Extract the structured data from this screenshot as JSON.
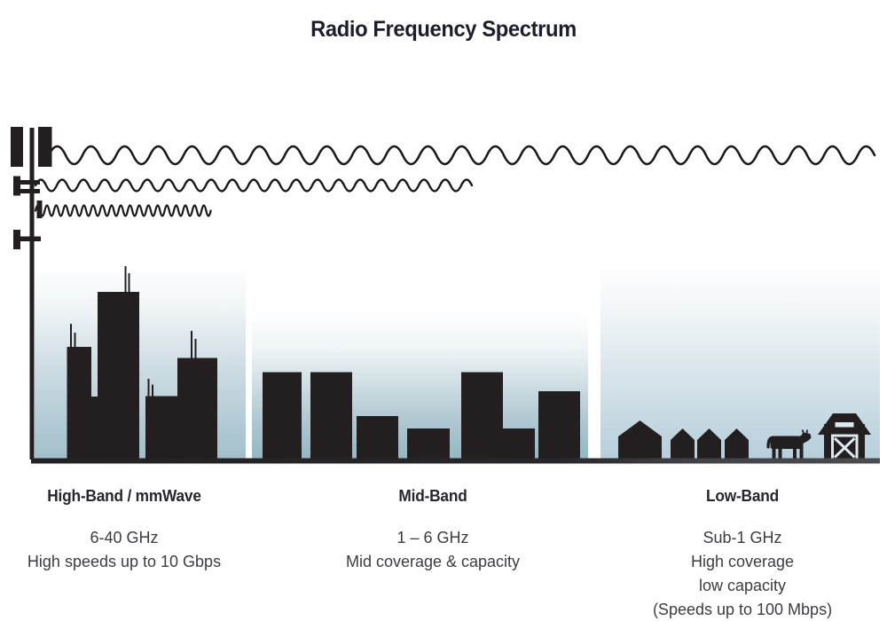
{
  "title": "Radio Frequency Spectrum",
  "colors": {
    "ink": "#231f20",
    "wave_stroke": "#191919",
    "title_text": "#1c1e2b",
    "body_text": "#3c3c42",
    "high_band_sky_bottom": "#a0bfcb",
    "mid_band_sky_bottom": "#93b6c3",
    "low_band_sky_bottom": "#b6cedb",
    "ground_left": "#232122",
    "ground_right": "#4b4c50"
  },
  "icons": {
    "tower": "cell-tower-icon",
    "wave_long": "long-wavelength-wave-icon",
    "wave_medium": "medium-wavelength-wave-icon",
    "wave_short": "short-wavelength-wave-icon",
    "high_scene": "city-skyline-icon",
    "mid_scene": "midrise-buildings-icon",
    "low_scene": "houses-cow-barn-icon"
  },
  "bands": [
    {
      "heading": "High-Band / mmWave",
      "lines": [
        "6-40 GHz",
        "High speeds up to 10 Gbps"
      ]
    },
    {
      "heading": "Mid-Band",
      "lines": [
        "1 – 6 GHz",
        "Mid coverage & capacity"
      ]
    },
    {
      "heading": "Low-Band",
      "lines": [
        "Sub-1 GHz",
        "High coverage",
        "low capacity",
        "(Speeds up to 100 Mbps)"
      ]
    }
  ]
}
